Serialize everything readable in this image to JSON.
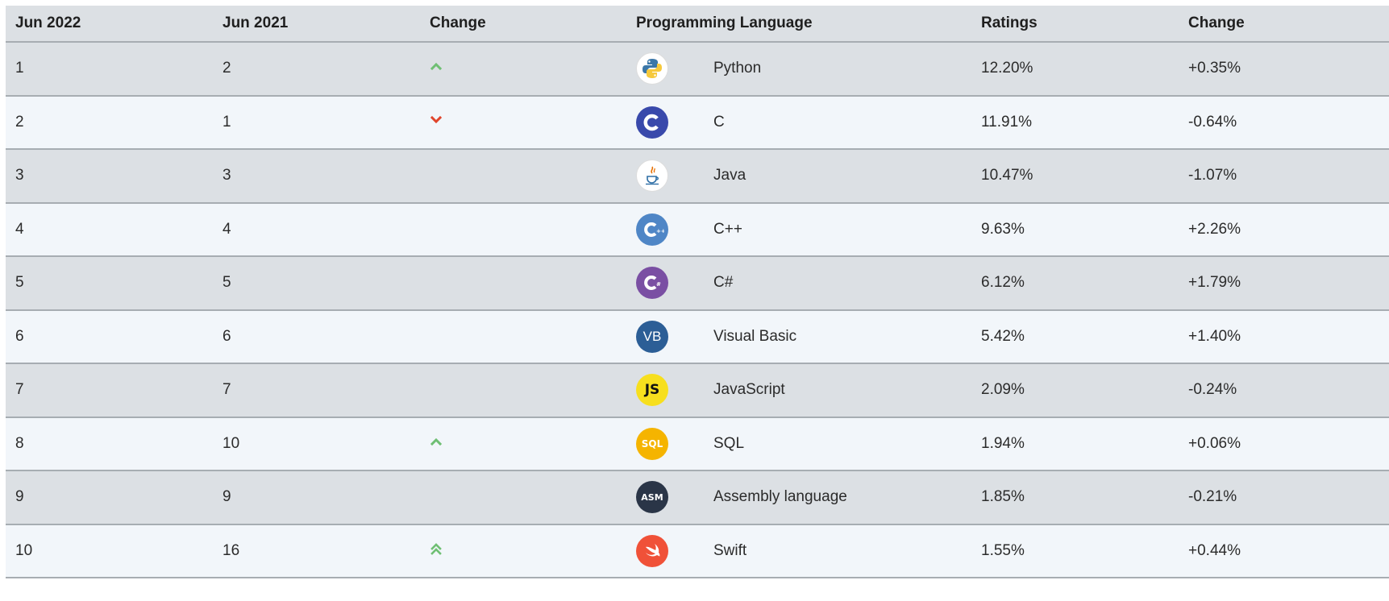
{
  "header": {
    "col_current": "Jun 2022",
    "col_previous": "Jun 2021",
    "col_change": "Change",
    "col_language": "Programming Language",
    "col_ratings": "Ratings",
    "col_change_pct": "Change"
  },
  "colors": {
    "up": "#6fbf73",
    "down": "#e0452b"
  },
  "rows": [
    {
      "current": "1",
      "previous": "2",
      "trend": "up",
      "icon": "python-icon",
      "language": "Python",
      "rating": "12.20%",
      "change": "+0.35%"
    },
    {
      "current": "2",
      "previous": "1",
      "trend": "down",
      "icon": "c-icon",
      "language": "C",
      "rating": "11.91%",
      "change": "-0.64%"
    },
    {
      "current": "3",
      "previous": "3",
      "trend": "none",
      "icon": "java-icon",
      "language": "Java",
      "rating": "10.47%",
      "change": "-1.07%"
    },
    {
      "current": "4",
      "previous": "4",
      "trend": "none",
      "icon": "cpp-icon",
      "language": "C++",
      "rating": "9.63%",
      "change": "+2.26%"
    },
    {
      "current": "5",
      "previous": "5",
      "trend": "none",
      "icon": "csharp-icon",
      "language": "C#",
      "rating": "6.12%",
      "change": "+1.79%"
    },
    {
      "current": "6",
      "previous": "6",
      "trend": "none",
      "icon": "visual-basic-icon",
      "language": "Visual Basic",
      "rating": "5.42%",
      "change": "+1.40%",
      "icon_text": "VB"
    },
    {
      "current": "7",
      "previous": "7",
      "trend": "none",
      "icon": "javascript-icon",
      "language": "JavaScript",
      "rating": "2.09%",
      "change": "-0.24%",
      "icon_text": "JS"
    },
    {
      "current": "8",
      "previous": "10",
      "trend": "up",
      "icon": "sql-icon",
      "language": "SQL",
      "rating": "1.94%",
      "change": "+0.06%",
      "icon_text": "SQL"
    },
    {
      "current": "9",
      "previous": "9",
      "trend": "none",
      "icon": "assembly-icon",
      "language": "Assembly language",
      "rating": "1.85%",
      "change": "-0.21%",
      "icon_text": "ASM"
    },
    {
      "current": "10",
      "previous": "16",
      "trend": "double-up",
      "icon": "swift-icon",
      "language": "Swift",
      "rating": "1.55%",
      "change": "+0.44%"
    }
  ]
}
